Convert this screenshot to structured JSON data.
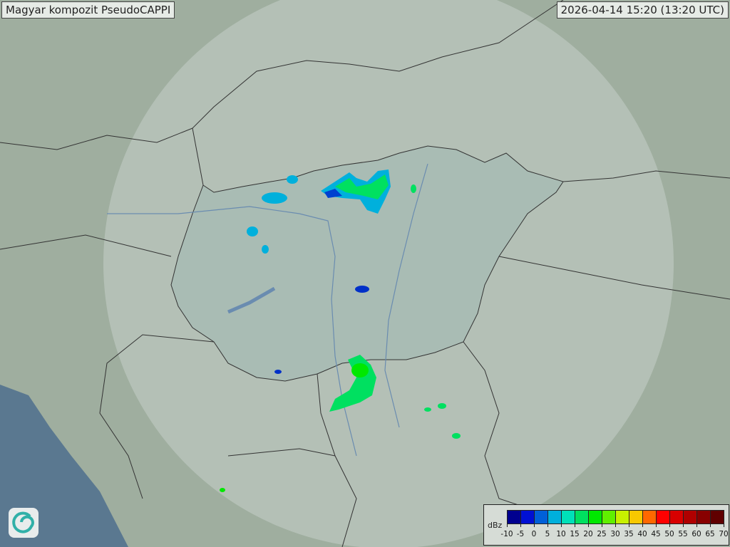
{
  "header": {
    "title": "Magyar kompozit  PseudoCAPPI",
    "timestamp": "2026-04-14 15:20 (13:20 UTC)"
  },
  "logo": {
    "icon": "swirl-logo-icon"
  },
  "legend": {
    "unit": "dBz",
    "ticks": [
      "-10",
      "-5",
      "0",
      "5",
      "10",
      "15",
      "20",
      "25",
      "30",
      "35",
      "40",
      "45",
      "50",
      "55",
      "60",
      "65",
      "70"
    ],
    "colors": [
      "#00008f",
      "#0010d4",
      "#0060d8",
      "#00b0dc",
      "#00e0b8",
      "#00e060",
      "#00e800",
      "#60f000",
      "#c8f000",
      "#f8c800",
      "#ff6800",
      "#ff0000",
      "#d80000",
      "#b00000",
      "#880000",
      "#600000"
    ]
  },
  "colors": {
    "land": "#9fae9f",
    "radar_coverage": "#c4d0c8",
    "hungary": "#a9bcb4",
    "sea": "#5a7890",
    "border": "#333333",
    "river": "#6a8cb0"
  }
}
